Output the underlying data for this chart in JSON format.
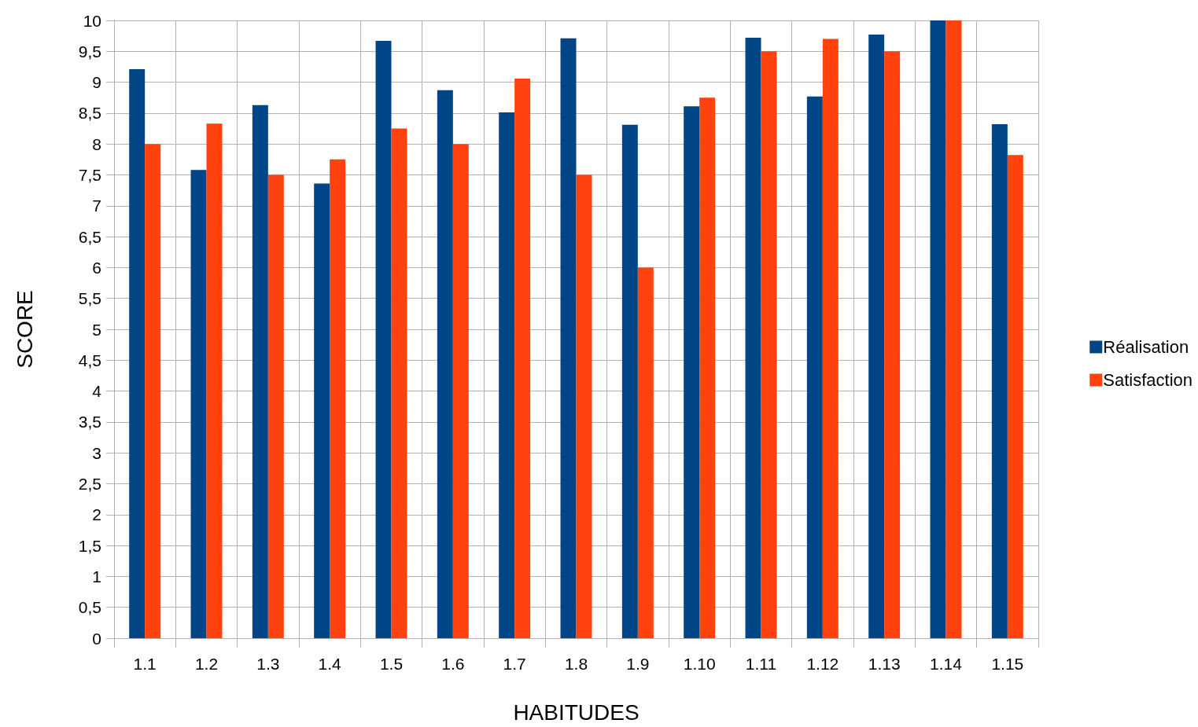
{
  "chart_data": {
    "type": "bar",
    "xlabel": "HABITUDES",
    "ylabel": "SCORE",
    "categories": [
      "1.1",
      "1.2",
      "1.3",
      "1.4",
      "1.5",
      "1.6",
      "1.7",
      "1.8",
      "1.9",
      "1.10",
      "1.11",
      "1.12",
      "1.13",
      "1.14",
      "1.15"
    ],
    "series": [
      {
        "name": "Réalisation",
        "color": "#004586",
        "values": [
          9.21,
          7.58,
          8.63,
          7.36,
          9.67,
          8.87,
          8.51,
          9.71,
          8.31,
          8.61,
          9.72,
          8.77,
          9.77,
          10,
          8.32
        ]
      },
      {
        "name": "Satisfaction",
        "color": "#ff420e",
        "values": [
          8,
          8.33,
          7.5,
          7.75,
          8.25,
          8,
          9.06,
          7.5,
          6,
          8.75,
          9.5,
          9.7,
          9.5,
          10,
          7.82
        ]
      }
    ],
    "ylim": [
      0,
      10
    ],
    "yticks": [
      0,
      {
        "value": 0.5,
        "label": "0,5"
      },
      1,
      {
        "value": 1.5,
        "label": "1,5"
      },
      2,
      {
        "value": 2.5,
        "label": "2,5"
      },
      3,
      {
        "value": 3.5,
        "label": "3,5"
      },
      4,
      {
        "value": 4.5,
        "label": "4,5"
      },
      5,
      {
        "value": 5.5,
        "label": "5,5"
      },
      6,
      {
        "value": 6.5,
        "label": "6,5"
      },
      7,
      {
        "value": 7.5,
        "label": "7,5"
      },
      8,
      {
        "value": 8.5,
        "label": "8,5"
      },
      9,
      {
        "value": 9.5,
        "label": "9,5"
      },
      10
    ],
    "grid": true,
    "legend": "right"
  }
}
